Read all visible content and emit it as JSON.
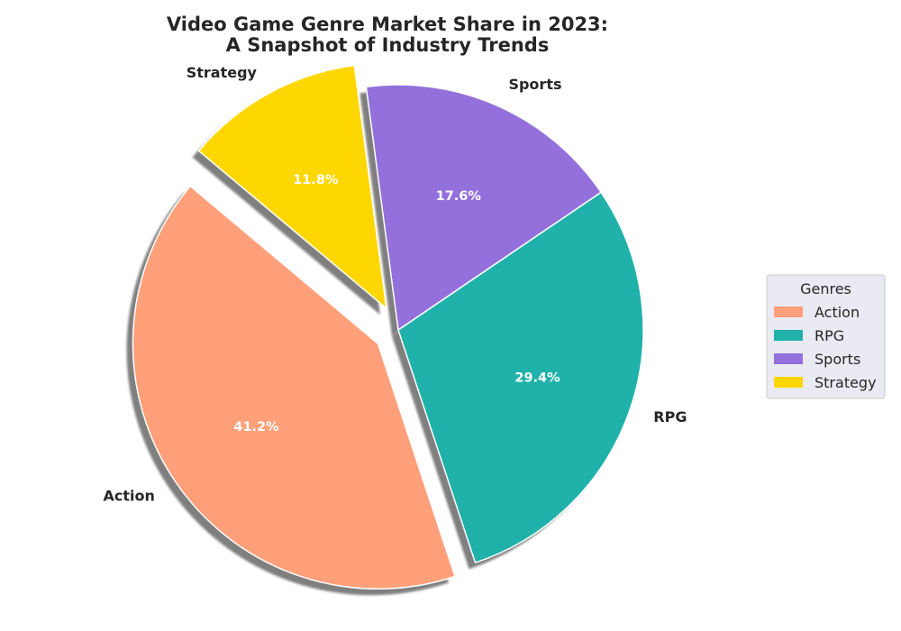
{
  "chart_data": {
    "type": "pie",
    "title": [
      "Video Game Genre Market Share in 2023:",
      "A Snapshot of Industry Trends"
    ],
    "categories": [
      "Action",
      "RPG",
      "Sports",
      "Strategy"
    ],
    "values": [
      41.2,
      29.4,
      17.6,
      11.8
    ],
    "percent_labels": [
      "41.2%",
      "29.4%",
      "17.6%",
      "11.8%"
    ],
    "colors": [
      "#FFA07A",
      "#20B2AA",
      "#9370DB",
      "#FFD700"
    ],
    "exploded": [
      "Action",
      "Strategy"
    ],
    "shadow": true,
    "start_angle_deg": 140,
    "legend": {
      "title": "Genres",
      "placement": "center-right",
      "entries": [
        "Action",
        "RPG",
        "Sports",
        "Strategy"
      ]
    }
  }
}
